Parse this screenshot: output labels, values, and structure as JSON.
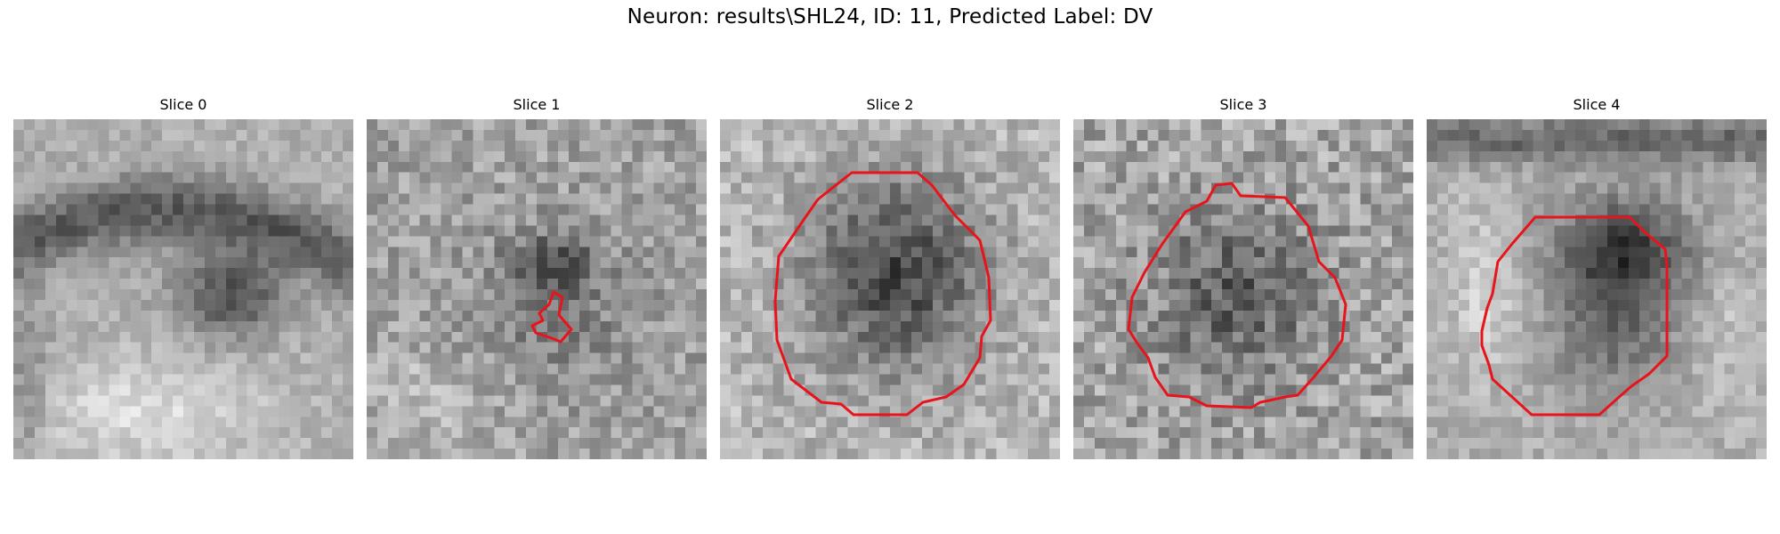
{
  "figure": {
    "title": "Neuron: results\\SHL24, ID: 11, Predicted Label: DV"
  },
  "panels": [
    {
      "title": "Slice 0",
      "has_contour": false
    },
    {
      "title": "Slice 1",
      "has_contour": true
    },
    {
      "title": "Slice 2",
      "has_contour": true
    },
    {
      "title": "Slice 3",
      "has_contour": true
    },
    {
      "title": "Slice 4",
      "has_contour": true
    }
  ],
  "colors": {
    "contour": "#e8141c",
    "background": "#ffffff"
  },
  "image": {
    "colormap": "grayscale",
    "grid": "32x32 pixels"
  }
}
